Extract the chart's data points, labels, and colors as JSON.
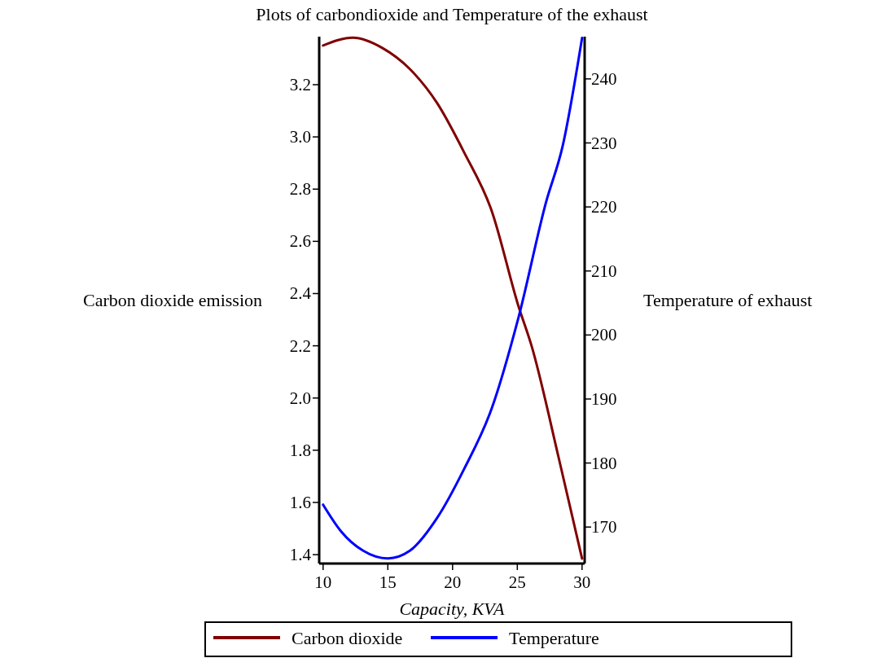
{
  "chart_data": {
    "type": "line",
    "title": "Plots of carbondioxide and Temperature of the exhaust",
    "xlabel": "Capacity, KVA",
    "ylabel": "Carbon dioxide emission",
    "y2label": "Temperature of exhaust",
    "xlim": [
      9.7,
      30.2
    ],
    "xticks": [
      10,
      15,
      20,
      25,
      30
    ],
    "ylim": [
      1.366,
      3.384
    ],
    "yticks": [
      1.4,
      1.6,
      1.8,
      {
        "value": 2,
        "label": "2.0"
      },
      2.2,
      2.4,
      2.6,
      2.8,
      {
        "value": 3,
        "label": "3.0"
      },
      3.2
    ],
    "y2lim": [
      164.3,
      246.6
    ],
    "y2ticks": [
      170,
      180,
      190,
      200,
      210,
      220,
      230,
      240
    ],
    "legend": "bottom",
    "grid": false,
    "line_style": "solid",
    "series": [
      {
        "name": "Carbon dioxide",
        "color": "#800000",
        "x": [
          10,
          12.3,
          14.6,
          16.7,
          18.8,
          20.9,
          23,
          25.1,
          26.1,
          28.2,
          30
        ],
        "values": [
          3.35,
          3.38,
          3.34,
          3.26,
          3.13,
          2.94,
          2.72,
          2.35,
          2.2,
          1.77,
          1.385
        ]
      },
      {
        "name": "Temperature",
        "color": "#0000ff",
        "axis": "y2",
        "x": [
          10,
          11.4,
          13.1,
          15,
          16.7,
          18.8,
          20.9,
          23,
          25.1,
          27.2,
          28.5,
          30
        ],
        "values": [
          173.5,
          169.3,
          166.3,
          165.1,
          166.3,
          171.4,
          179.1,
          188.4,
          202.8,
          220.6,
          229.5,
          246.4
        ]
      }
    ]
  }
}
